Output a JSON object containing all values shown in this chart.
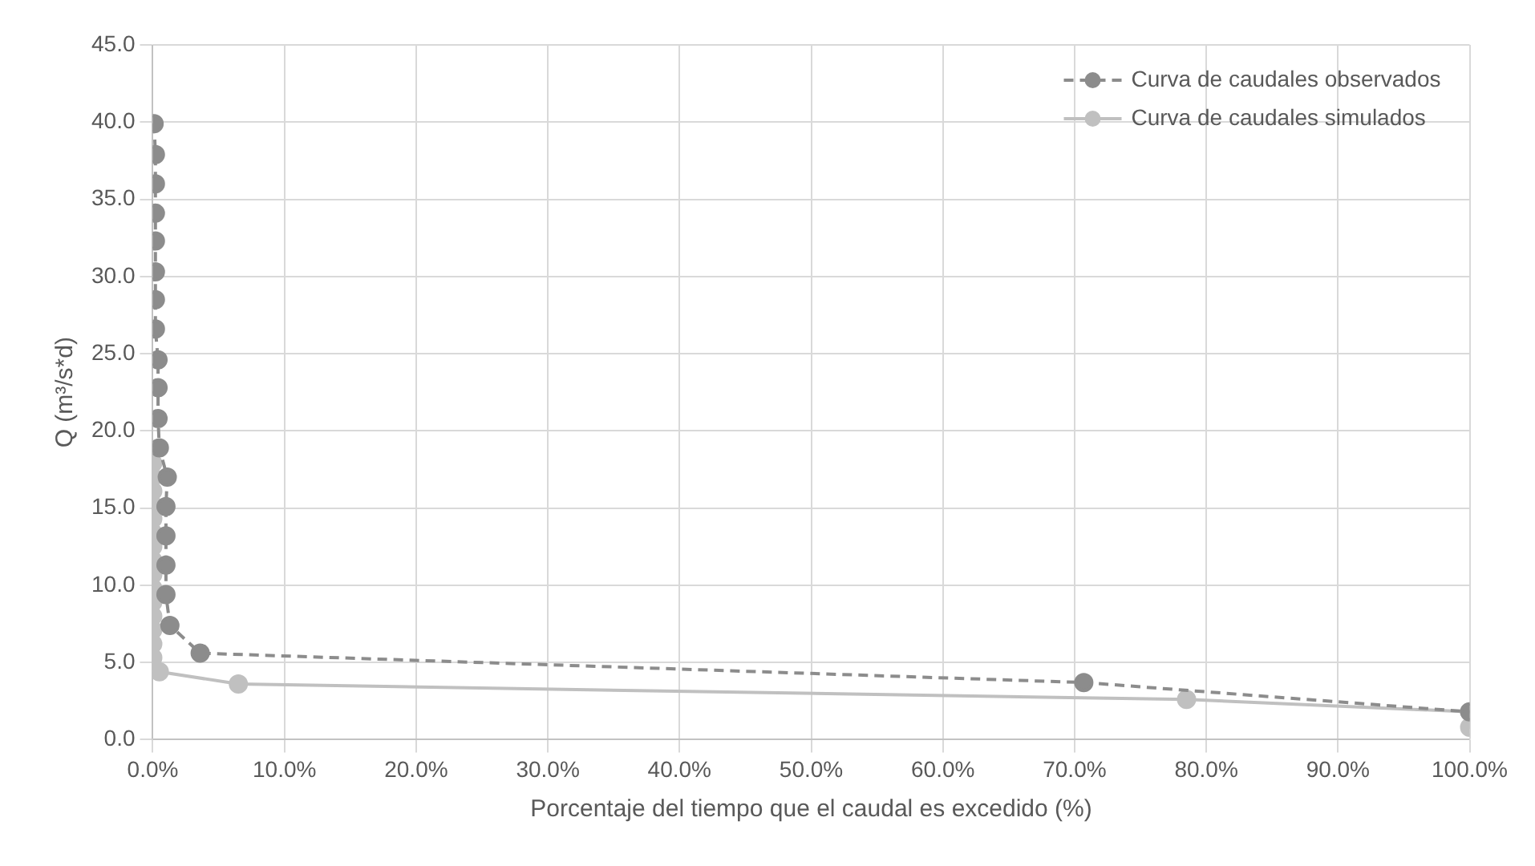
{
  "chart_data": {
    "type": "line",
    "xlabel": "Porcentaje del tiempo que el caudal es excedido (%)",
    "ylabel": "Q (m³/s*d)",
    "xlim": [
      0,
      100
    ],
    "xticks": [
      {
        "value": 0,
        "label": "0.0%"
      },
      {
        "value": 10,
        "label": "10.0%"
      },
      {
        "value": 20,
        "label": "20.0%"
      },
      {
        "value": 30,
        "label": "30.0%"
      },
      {
        "value": 40,
        "label": "40.0%"
      },
      {
        "value": 50,
        "label": "50.0%"
      },
      {
        "value": 60,
        "label": "60.0%"
      },
      {
        "value": 70,
        "label": "70.0%"
      },
      {
        "value": 80,
        "label": "80.0%"
      },
      {
        "value": 90,
        "label": "90.0%"
      },
      {
        "value": 100,
        "label": "100.0%"
      }
    ],
    "ylim": [
      0,
      45
    ],
    "yticks": [
      {
        "value": 0,
        "label": "0.0"
      },
      {
        "value": 5,
        "label": "5.0"
      },
      {
        "value": 10,
        "label": "10.0"
      },
      {
        "value": 15,
        "label": "15.0"
      },
      {
        "value": 20,
        "label": "20.0"
      },
      {
        "value": 25,
        "label": "25.0"
      },
      {
        "value": 30,
        "label": "30.0"
      },
      {
        "value": 35,
        "label": "35.0"
      },
      {
        "value": 40,
        "label": "40.0"
      },
      {
        "value": 45,
        "label": "45.0"
      }
    ],
    "grid": true,
    "legend": "top right",
    "marker": "circle",
    "series": [
      {
        "name": "Curva de caudales observados",
        "color": "#8c8c8c",
        "line_style": "dashed",
        "x": [
          0.1,
          0.2,
          0.2,
          0.2,
          0.2,
          0.2,
          0.2,
          0.2,
          0.4,
          0.4,
          0.4,
          0.5,
          1.1,
          1.0,
          1.0,
          1.0,
          1.0,
          1.3,
          3.6,
          70.7,
          100
        ],
        "values": [
          39.9,
          37.9,
          36.0,
          34.1,
          32.3,
          30.3,
          28.5,
          26.6,
          24.6,
          22.8,
          20.8,
          18.9,
          17.0,
          15.1,
          13.2,
          11.3,
          9.4,
          7.4,
          5.6,
          3.7,
          1.8
        ]
      },
      {
        "name": "Curva de caudales simulados",
        "color": "#c0c0c0",
        "line_style": "solid",
        "x": [
          0,
          0,
          0,
          0,
          0,
          0,
          0,
          0,
          0,
          0,
          0,
          0,
          0,
          0,
          0,
          0,
          0.5,
          6.5,
          78.5,
          100,
          100
        ],
        "values": [
          18.8,
          17.9,
          17.0,
          16.1,
          15.2,
          14.3,
          13.4,
          12.5,
          11.6,
          10.7,
          9.8,
          8.9,
          8.0,
          7.1,
          6.2,
          5.3,
          4.4,
          3.6,
          2.6,
          1.8,
          0.8
        ]
      }
    ]
  }
}
